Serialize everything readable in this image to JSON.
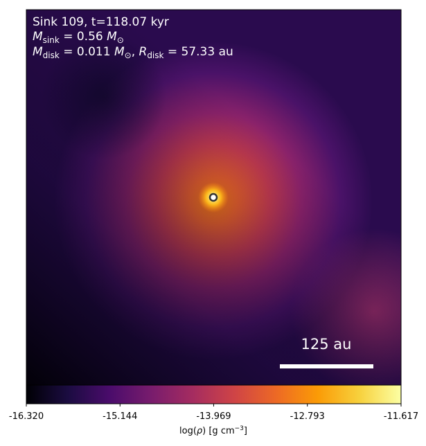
{
  "chart_data": {
    "type": "heatmap",
    "annotations": [
      [
        "Sink 109, t=118.07 kyr"
      ],
      [
        "M",
        "sink",
        " = 0.56 ",
        "M",
        "⊙"
      ],
      [
        "M",
        "disk",
        " = 0.011 ",
        "M",
        "⊙",
        ", ",
        "R",
        "disk",
        " = 57.33 au"
      ]
    ],
    "scale_bar_label": "125 au",
    "colorbar": {
      "label": [
        "log(",
        "ρ",
        ") [g cm",
        "−3",
        "]"
      ],
      "lim": [
        -16.32,
        -11.617
      ],
      "ticks": [
        {
          "value": -16.32,
          "label": "-16.320"
        },
        -15.144,
        -13.969,
        -12.793,
        -11.617
      ],
      "colormap": [
        "#000004",
        "#1b0c41",
        "#4a0c6b",
        "#781c6d",
        "#a52c60",
        "#cf4446",
        "#ed6925",
        "#fb9b06",
        "#f7d13d",
        "#fcffa4"
      ]
    }
  }
}
